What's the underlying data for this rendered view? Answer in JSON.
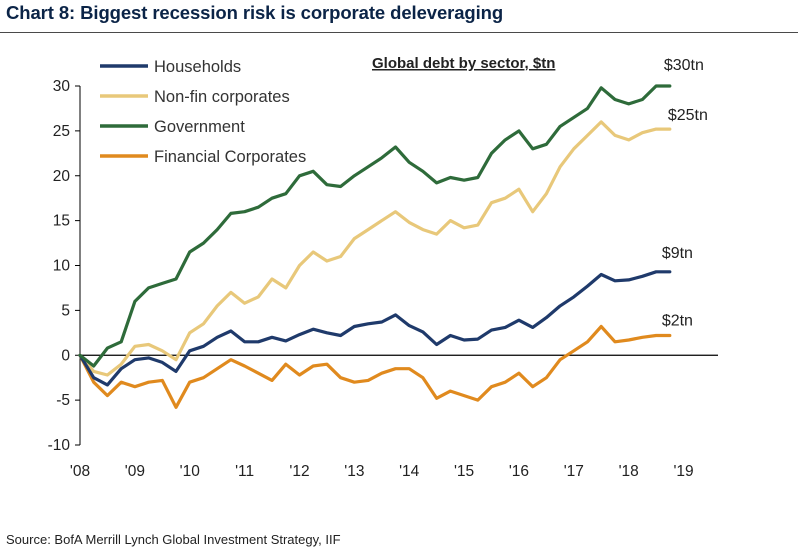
{
  "header": {
    "title": "Chart 8: Biggest recession risk is corporate deleveraging"
  },
  "footer": {
    "source": "Source: BofA Merrill Lynch Global Investment Strategy, IIF"
  },
  "chart_data": {
    "type": "line",
    "title": "Global debt by sector, $tn",
    "xlabel": "",
    "ylabel": "",
    "ylim": [
      -10,
      30
    ],
    "yticks": [
      "-10",
      "-5",
      "0",
      "5",
      "10",
      "15",
      "20",
      "25",
      "30"
    ],
    "xlim": [
      2008,
      2019.3
    ],
    "xticks": [
      "'08",
      "'09",
      "'10",
      "'11",
      "'12",
      "'13",
      "'14",
      "'15",
      "'16",
      "'17",
      "'18",
      "'19"
    ],
    "legend_position": "top-left",
    "series": [
      {
        "name": "Households",
        "color": "#1f3a6b",
        "end_label": "$9tn",
        "x": [
          2008,
          2008.25,
          2008.5,
          2008.75,
          2009,
          2009.25,
          2009.5,
          2009.75,
          2010,
          2010.25,
          2010.5,
          2010.75,
          2011,
          2011.25,
          2011.5,
          2011.75,
          2012,
          2012.25,
          2012.5,
          2012.75,
          2013,
          2013.25,
          2013.5,
          2013.75,
          2014,
          2014.25,
          2014.5,
          2014.75,
          2015,
          2015.25,
          2015.5,
          2015.75,
          2016,
          2016.25,
          2016.5,
          2016.75,
          2017,
          2017.25,
          2017.5,
          2017.75,
          2018,
          2018.25,
          2018.5,
          2018.75
        ],
        "values": [
          0,
          -2.5,
          -3.3,
          -1.5,
          -0.5,
          -0.3,
          -0.8,
          -1.8,
          0.5,
          1.0,
          2.0,
          2.7,
          1.5,
          1.5,
          2.0,
          1.6,
          2.3,
          2.9,
          2.5,
          2.2,
          3.2,
          3.5,
          3.7,
          4.5,
          3.3,
          2.6,
          1.2,
          2.2,
          1.7,
          1.8,
          2.8,
          3.1,
          3.9,
          3.1,
          4.2,
          5.5,
          6.5,
          7.7,
          9.0,
          8.3,
          8.4,
          8.8,
          9.3,
          9.3
        ]
      },
      {
        "name": "Non-fin corporates",
        "color": "#e8c87a",
        "end_label": "$25tn",
        "x": [
          2008,
          2008.25,
          2008.5,
          2008.75,
          2009,
          2009.25,
          2009.5,
          2009.75,
          2010,
          2010.25,
          2010.5,
          2010.75,
          2011,
          2011.25,
          2011.5,
          2011.75,
          2012,
          2012.25,
          2012.5,
          2012.75,
          2013,
          2013.25,
          2013.5,
          2013.75,
          2014,
          2014.25,
          2014.5,
          2014.75,
          2015,
          2015.25,
          2015.5,
          2015.75,
          2016,
          2016.25,
          2016.5,
          2016.75,
          2017,
          2017.25,
          2017.5,
          2017.75,
          2018,
          2018.25,
          2018.5,
          2018.75
        ],
        "values": [
          0,
          -1.8,
          -2.2,
          -1.0,
          1.0,
          1.2,
          0.5,
          -0.5,
          2.5,
          3.5,
          5.5,
          7.0,
          5.8,
          6.5,
          8.5,
          7.5,
          10.0,
          11.5,
          10.5,
          11.0,
          13.0,
          14.0,
          15.0,
          16.0,
          14.8,
          14.0,
          13.5,
          15.0,
          14.2,
          14.5,
          17.0,
          17.5,
          18.5,
          16.0,
          18.0,
          21.0,
          23.0,
          24.5,
          26.0,
          24.5,
          24.0,
          24.8,
          25.2,
          25.2
        ]
      },
      {
        "name": "Government",
        "color": "#2e6b3a",
        "end_label": "$30tn",
        "x": [
          2008,
          2008.25,
          2008.5,
          2008.75,
          2009,
          2009.25,
          2009.5,
          2009.75,
          2010,
          2010.25,
          2010.5,
          2010.75,
          2011,
          2011.25,
          2011.5,
          2011.75,
          2012,
          2012.25,
          2012.5,
          2012.75,
          2013,
          2013.25,
          2013.5,
          2013.75,
          2014,
          2014.25,
          2014.5,
          2014.75,
          2015,
          2015.25,
          2015.5,
          2015.75,
          2016,
          2016.25,
          2016.5,
          2016.75,
          2017,
          2017.25,
          2017.5,
          2017.75,
          2018,
          2018.25,
          2018.5,
          2018.75
        ],
        "values": [
          0,
          -1.2,
          0.8,
          1.5,
          6.0,
          7.5,
          8.0,
          8.5,
          11.5,
          12.5,
          14.0,
          15.8,
          16.0,
          16.5,
          17.5,
          18.0,
          20.0,
          20.5,
          19.0,
          18.8,
          20.0,
          21.0,
          22.0,
          23.2,
          21.5,
          20.5,
          19.2,
          19.8,
          19.5,
          19.8,
          22.5,
          24.0,
          25.0,
          23.0,
          23.5,
          25.5,
          26.5,
          27.5,
          29.8,
          28.5,
          28.0,
          28.5,
          30.0,
          30.0
        ]
      },
      {
        "name": "Financial Corporates",
        "color": "#e08a1e",
        "end_label": "$2tn",
        "x": [
          2008,
          2008.25,
          2008.5,
          2008.75,
          2009,
          2009.25,
          2009.5,
          2009.75,
          2010,
          2010.25,
          2010.5,
          2010.75,
          2011,
          2011.25,
          2011.5,
          2011.75,
          2012,
          2012.25,
          2012.5,
          2012.75,
          2013,
          2013.25,
          2013.5,
          2013.75,
          2014,
          2014.25,
          2014.5,
          2014.75,
          2015,
          2015.25,
          2015.5,
          2015.75,
          2016,
          2016.25,
          2016.5,
          2016.75,
          2017,
          2017.25,
          2017.5,
          2017.75,
          2018,
          2018.25,
          2018.5,
          2018.75
        ],
        "values": [
          0,
          -3.0,
          -4.5,
          -3.0,
          -3.5,
          -3.0,
          -2.8,
          -5.8,
          -3.0,
          -2.5,
          -1.5,
          -0.5,
          -1.2,
          -2.0,
          -2.8,
          -1.0,
          -2.2,
          -1.2,
          -1.0,
          -2.5,
          -3.0,
          -2.8,
          -2.0,
          -1.5,
          -1.5,
          -2.5,
          -4.8,
          -4.0,
          -4.5,
          -5.0,
          -3.5,
          -3.0,
          -2.0,
          -3.5,
          -2.5,
          -0.5,
          0.5,
          1.5,
          3.2,
          1.5,
          1.7,
          2.0,
          2.2,
          2.2
        ]
      }
    ]
  }
}
